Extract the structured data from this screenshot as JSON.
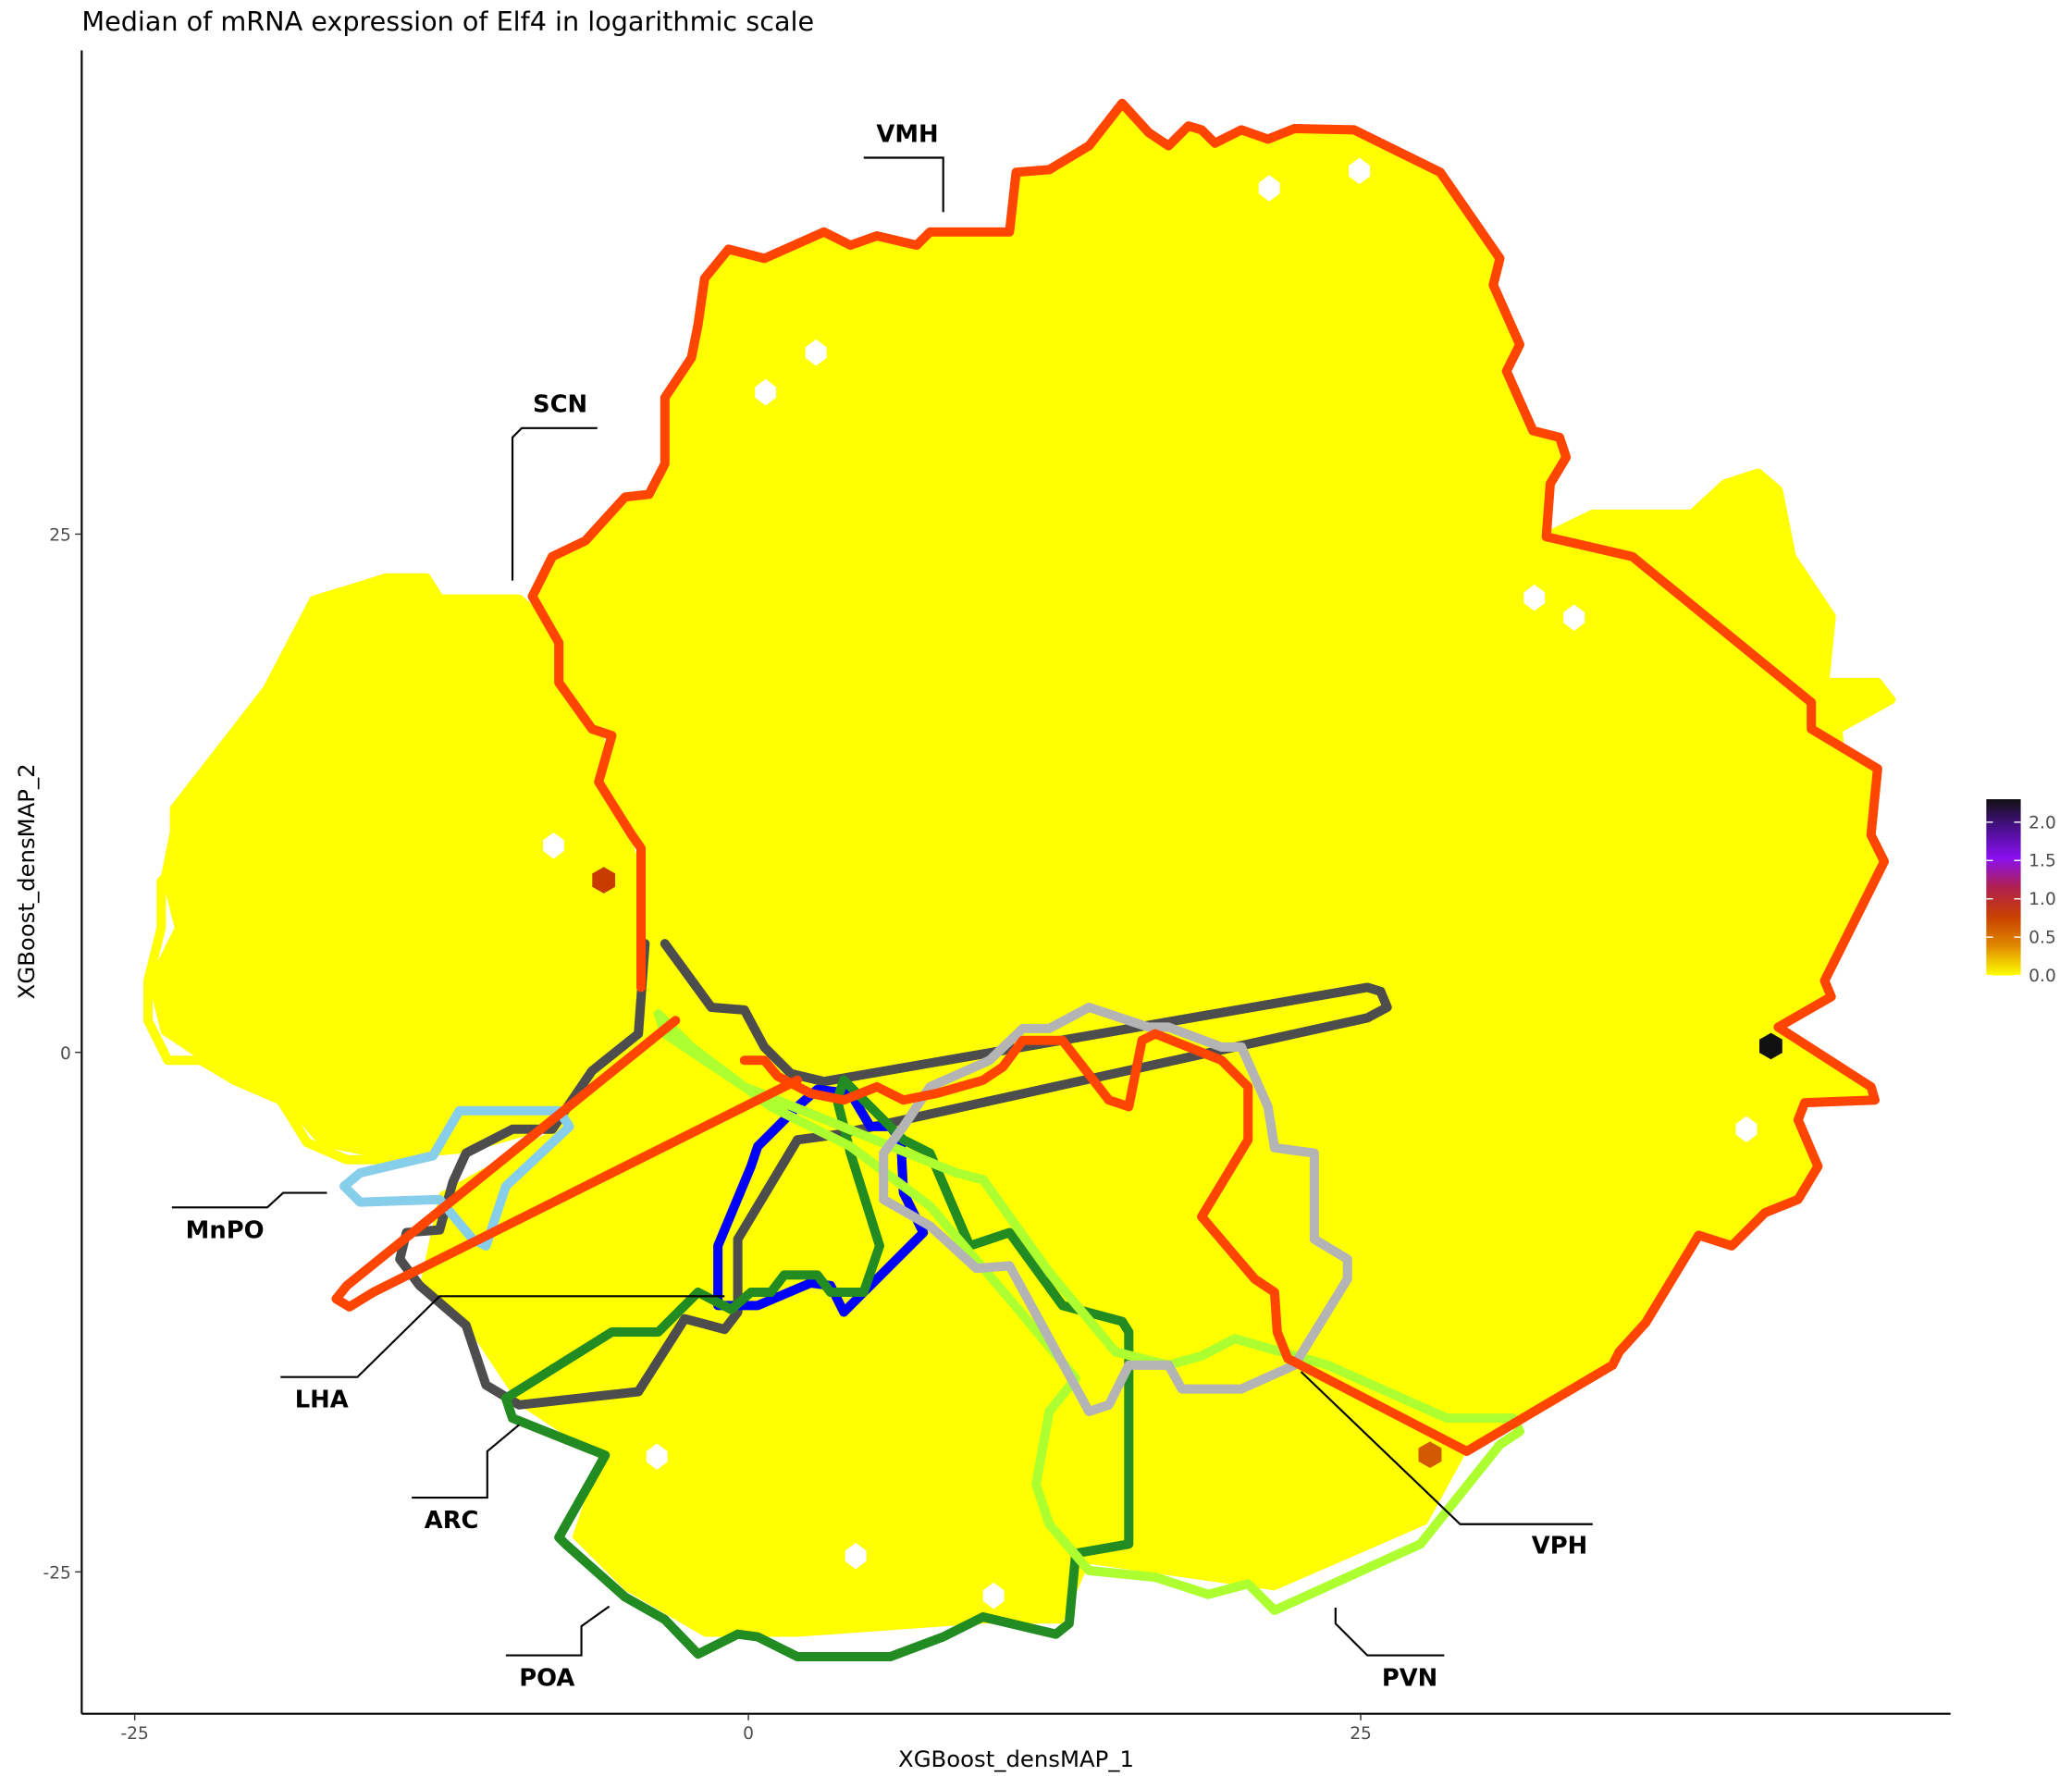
{
  "chart_data": {
    "type": "hexbin",
    "title": "Median of mRNA expression of Elf4 in logarithmic scale",
    "xlabel": "XGBoost_densMAP_1",
    "ylabel": "XGBoost_densMAP_2",
    "x_ticks": [
      "-25",
      "0",
      "25"
    ],
    "y_ticks": [
      "25",
      "0",
      "-25"
    ],
    "x_tick_values": [
      -25,
      0,
      25
    ],
    "y_tick_values": [
      25,
      0,
      -25
    ],
    "grid": false,
    "base_fill_color": "#ffff00",
    "base_value": 0.0,
    "highlighted_hexes": [
      {
        "x": -5.9,
        "y": 8.3,
        "value": 1.0,
        "color": "#c83c00"
      },
      {
        "x": 41.7,
        "y": 0.3,
        "value": 2.3,
        "color": "#111111"
      },
      {
        "x": 27.8,
        "y": -19.4,
        "value": 0.7,
        "color": "#d25a00"
      }
    ],
    "colorbar": {
      "placement": "right",
      "ticks": [
        "0.0",
        "0.5",
        "1.0",
        "1.5",
        "2.0"
      ],
      "range": [
        0,
        2.3
      ],
      "colors": [
        "#ffff00",
        "#e08a00",
        "#c84000",
        "#b02050",
        "#8a10f0",
        "#4a1090",
        "#111111"
      ]
    },
    "regions": [
      {
        "name": "VMH",
        "color": "#ff4500"
      },
      {
        "name": "SCN",
        "color": "#ffff00"
      },
      {
        "name": "MnPO",
        "color": "#87ceeb"
      },
      {
        "name": "LHA",
        "color": "#4d4d4d"
      },
      {
        "name": "ARC",
        "color": "#0000ff"
      },
      {
        "name": "POA",
        "color": "#228b22"
      },
      {
        "name": "PVN",
        "color": "#adff2f"
      },
      {
        "name": "VPH",
        "color": "#b4b4b4"
      }
    ]
  }
}
